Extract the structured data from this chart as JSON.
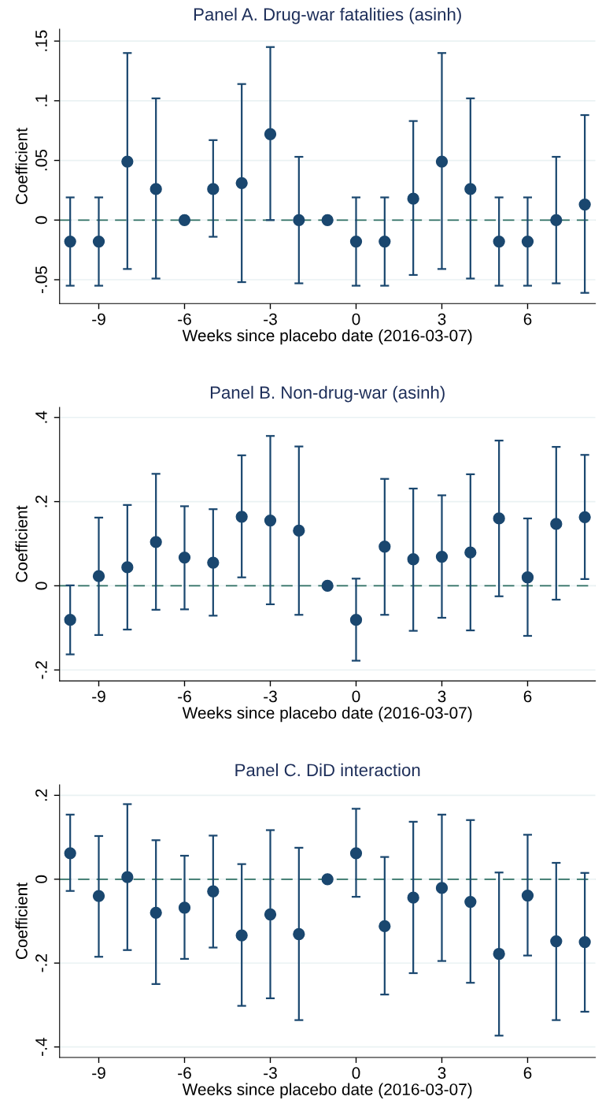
{
  "chart_data": [
    {
      "type": "scatter",
      "title": "Panel A. Drug-war fatalities (asinh)",
      "xlabel": "Weeks since placebo date (2016-03-07)",
      "ylabel": "Coefficient",
      "x": [
        -10,
        -9,
        -8,
        -7,
        -6,
        -5,
        -4,
        -3,
        -2,
        -1,
        0,
        1,
        2,
        3,
        4,
        5,
        6,
        7,
        8
      ],
      "series": [
        {
          "color": "#1a476f",
          "values": [
            -0.018,
            -0.018,
            0.049,
            0.026,
            0,
            0.026,
            0.031,
            0.072,
            0,
            0,
            -0.018,
            -0.018,
            0.018,
            0.049,
            0.026,
            -0.018,
            -0.018,
            0,
            0.013
          ],
          "errors": [
            [
              -0.055,
              0.019
            ],
            [
              -0.055,
              0.019
            ],
            [
              -0.041,
              0.14
            ],
            [
              -0.049,
              0.102
            ],
            null,
            [
              -0.014,
              0.067
            ],
            [
              -0.052,
              0.114
            ],
            [
              0,
              0.145
            ],
            [
              -0.053,
              0.053
            ],
            null,
            [
              -0.055,
              0.019
            ],
            [
              -0.055,
              0.019
            ],
            [
              -0.046,
              0.083
            ],
            [
              -0.041,
              0.14
            ],
            [
              -0.049,
              0.102
            ],
            [
              -0.055,
              0.019
            ],
            [
              -0.055,
              0.019
            ],
            [
              -0.053,
              0.053
            ],
            [
              -0.061,
              0.088
            ]
          ]
        }
      ],
      "xlim": [
        -10.37,
        8.37
      ],
      "ylim": [
        -0.07,
        0.16
      ],
      "xticks": [
        -9,
        -6,
        -3,
        0,
        3,
        6
      ],
      "yticks": [
        {
          "value": -0.05,
          "label": "-.05"
        },
        {
          "value": 0,
          "label": "0"
        },
        {
          "value": 0.05,
          "label": ".05"
        },
        {
          "value": 0.1,
          "label": ".1"
        },
        {
          "value": 0.15,
          "label": ".15"
        }
      ],
      "ref_lines": [
        {
          "axis": "y",
          "value": 0,
          "color": "#2e6f63",
          "line_style": "dashed"
        }
      ],
      "grid": "y",
      "marker": "circle"
    },
    {
      "type": "scatter",
      "title": "Panel B. Non-drug-war (asinh)",
      "xlabel": "Weeks since placebo date (2016-03-07)",
      "ylabel": "Coefficient",
      "x": [
        -10,
        -9,
        -8,
        -7,
        -6,
        -5,
        -4,
        -3,
        -2,
        -1,
        0,
        1,
        2,
        3,
        4,
        5,
        6,
        7,
        8
      ],
      "series": [
        {
          "color": "#1a476f",
          "values": [
            -0.081,
            0.023,
            0.044,
            0.104,
            0.067,
            0.055,
            0.164,
            0.155,
            0.131,
            0,
            -0.081,
            0.093,
            0.063,
            0.069,
            0.079,
            0.16,
            0.02,
            0.147,
            0.163
          ],
          "errors": [
            [
              -0.163,
              0.001
            ],
            [
              -0.117,
              0.162
            ],
            [
              -0.104,
              0.192
            ],
            [
              -0.057,
              0.266
            ],
            [
              -0.056,
              0.189
            ],
            [
              -0.071,
              0.182
            ],
            [
              0.02,
              0.31
            ],
            [
              -0.044,
              0.356
            ],
            [
              -0.069,
              0.331
            ],
            null,
            [
              -0.178,
              0.017
            ],
            [
              -0.069,
              0.254
            ],
            [
              -0.107,
              0.231
            ],
            [
              -0.076,
              0.215
            ],
            [
              -0.106,
              0.265
            ],
            [
              -0.025,
              0.345
            ],
            [
              -0.119,
              0.16
            ],
            [
              -0.033,
              0.33
            ],
            [
              0.016,
              0.311
            ]
          ]
        }
      ],
      "xlim": [
        -10.37,
        8.37
      ],
      "ylim": [
        -0.226,
        0.424
      ],
      "xticks": [
        -9,
        -6,
        -3,
        0,
        3,
        6
      ],
      "yticks": [
        {
          "value": -0.2,
          "label": "-.2"
        },
        {
          "value": 0,
          "label": "0"
        },
        {
          "value": 0.2,
          "label": ".2"
        },
        {
          "value": 0.4,
          "label": ".4"
        }
      ],
      "ref_lines": [
        {
          "axis": "y",
          "value": 0,
          "color": "#2e6f63",
          "line_style": "dashed"
        }
      ],
      "grid": "y",
      "marker": "circle"
    },
    {
      "type": "scatter",
      "title": "Panel C. DiD interaction",
      "xlabel": "Weeks since placebo date (2016-03-07)",
      "ylabel": "Coefficient",
      "x": [
        -10,
        -9,
        -8,
        -7,
        -6,
        -5,
        -4,
        -3,
        -2,
        -1,
        0,
        1,
        2,
        3,
        4,
        5,
        6,
        7,
        8
      ],
      "series": [
        {
          "color": "#1a476f",
          "values": [
            0.062,
            -0.04,
            0.005,
            -0.08,
            -0.068,
            -0.029,
            -0.134,
            -0.084,
            -0.131,
            0,
            0.062,
            -0.112,
            -0.044,
            -0.021,
            -0.054,
            -0.178,
            -0.039,
            -0.148,
            -0.15
          ],
          "errors": [
            [
              -0.028,
              0.154
            ],
            [
              -0.185,
              0.103
            ],
            [
              -0.169,
              0.179
            ],
            [
              -0.25,
              0.093
            ],
            [
              -0.19,
              0.056
            ],
            [
              -0.163,
              0.104
            ],
            [
              -0.302,
              0.036
            ],
            [
              -0.284,
              0.117
            ],
            [
              -0.336,
              0.075
            ],
            null,
            [
              -0.042,
              0.168
            ],
            [
              -0.275,
              0.053
            ],
            [
              -0.224,
              0.137
            ],
            [
              -0.195,
              0.154
            ],
            [
              -0.247,
              0.141
            ],
            [
              -0.373,
              0.016
            ],
            [
              -0.182,
              0.106
            ],
            [
              -0.336,
              0.039
            ],
            [
              -0.316,
              0.015
            ]
          ]
        }
      ],
      "xlim": [
        -10.37,
        8.37
      ],
      "ylim": [
        -0.425,
        0.225
      ],
      "xticks": [
        -9,
        -6,
        -3,
        0,
        3,
        6
      ],
      "yticks": [
        {
          "value": -0.4,
          "label": "-.4"
        },
        {
          "value": -0.2,
          "label": "-.2"
        },
        {
          "value": 0,
          "label": "0"
        },
        {
          "value": 0.2,
          "label": ".2"
        }
      ],
      "ref_lines": [
        {
          "axis": "y",
          "value": 0,
          "color": "#2e6f63",
          "line_style": "dashed"
        }
      ],
      "grid": "y",
      "marker": "circle"
    }
  ]
}
